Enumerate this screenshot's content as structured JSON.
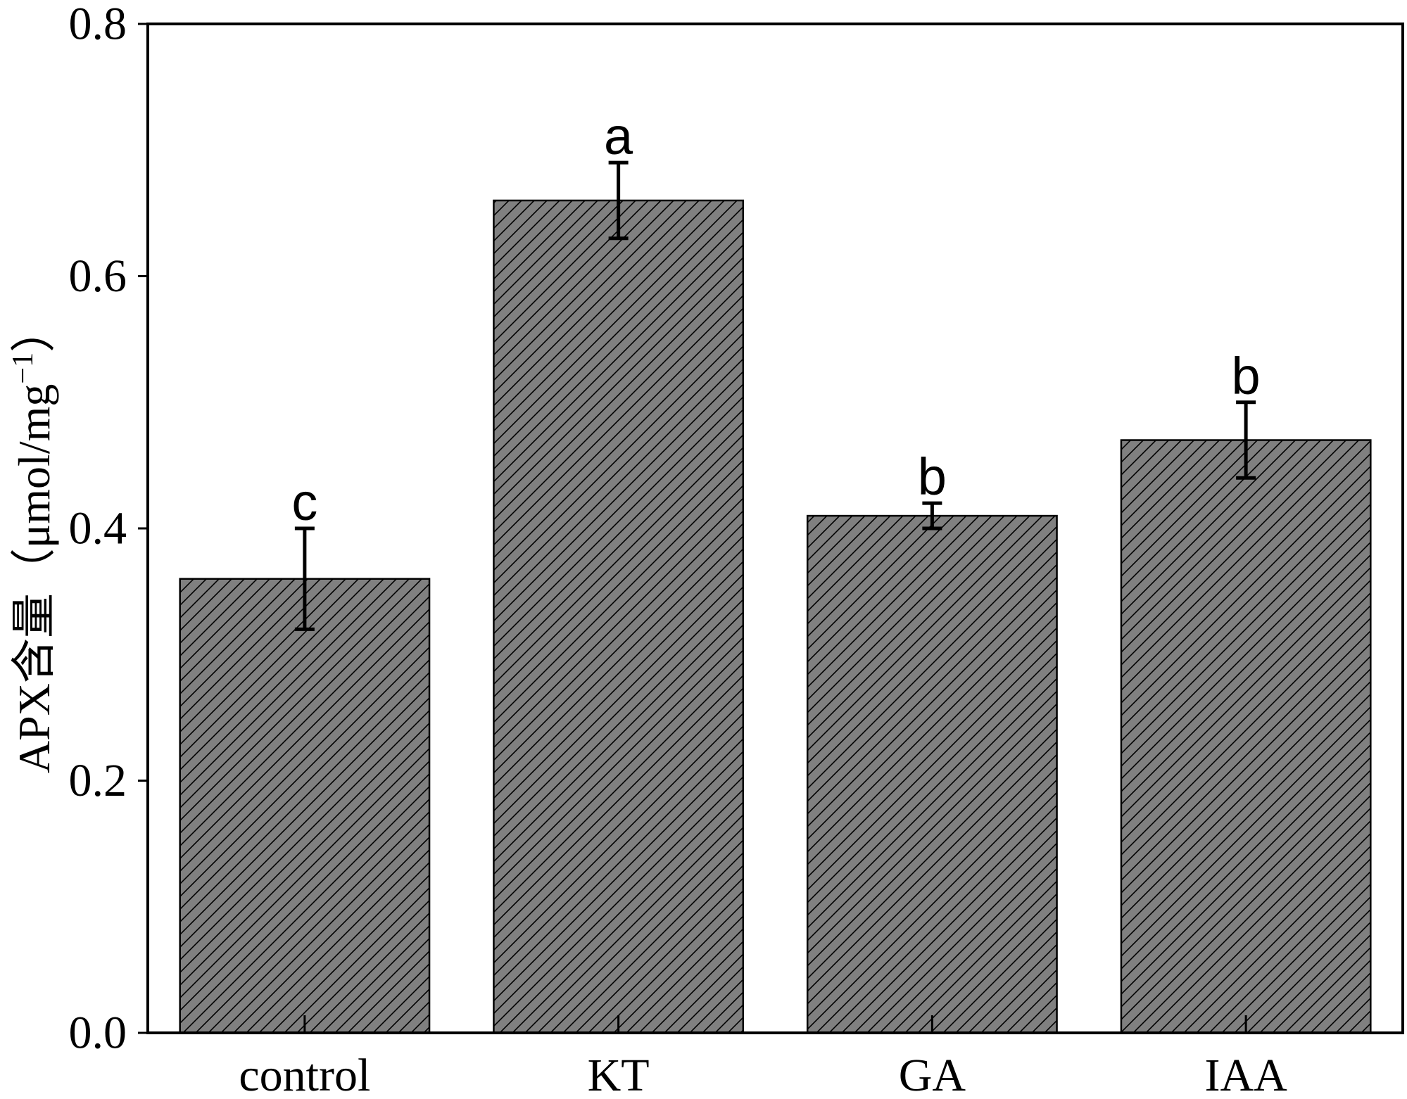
{
  "chart_data": {
    "type": "bar",
    "ylabel": "APX含量（μmol/mg",
    "ylabel_sup": "−1",
    "ylabel_end": "）",
    "categories": [
      "control",
      "KT",
      "GA",
      "IAA"
    ],
    "values": [
      0.36,
      0.66,
      0.41,
      0.47
    ],
    "errors": [
      0.04,
      0.03,
      0.01,
      0.03
    ],
    "significance": [
      "c",
      "a",
      "b",
      "b"
    ],
    "ylim": [
      0,
      0.8
    ],
    "yticks": [
      0,
      0.2,
      0.4,
      0.6,
      0.8
    ],
    "ytick_labels": [
      "0.0",
      "0.2",
      "0.4",
      "0.6",
      "0.8"
    ],
    "grid": false
  },
  "colors": {
    "bar_fill": "#808080",
    "hatch": "#000000",
    "axis": "#000000",
    "background": "#ffffff"
  }
}
